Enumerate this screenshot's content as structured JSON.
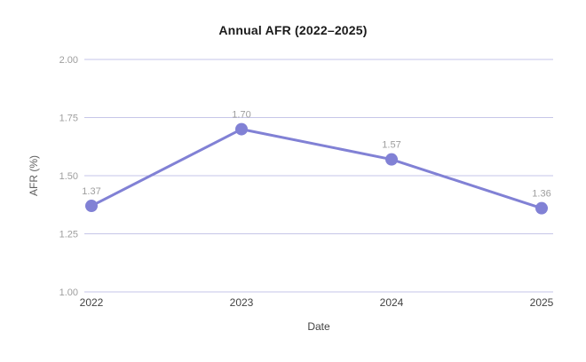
{
  "chart_data": {
    "type": "line",
    "title": "Annual AFR (2022–2025)",
    "xlabel": "Date",
    "ylabel": "AFR (%)",
    "x": [
      "2022",
      "2023",
      "2024",
      "2025"
    ],
    "series": [
      {
        "name": "AFR",
        "values": [
          1.37,
          1.7,
          1.57,
          1.36
        ]
      }
    ],
    "point_labels": [
      "1.37",
      "1.70",
      "1.57",
      "1.36"
    ],
    "ylim": [
      1.0,
      2.0
    ],
    "yticks": [
      1.0,
      1.25,
      1.5,
      1.75,
      2.0
    ],
    "ytick_labels": [
      "1.00",
      "1.25",
      "1.50",
      "1.75",
      "2.00"
    ],
    "grid": true,
    "legend": false,
    "colors": {
      "line": "#8181d5",
      "point": "#8181d5",
      "gridline": "#c6c6e8",
      "tick_label": "#9e9e9e",
      "data_label": "#9e9e9e",
      "x_label": "#424242",
      "axis_title_y": "#5f5f5f",
      "axis_title_x": "#424242",
      "title": "#1a1a1a",
      "background": "#ffffff"
    }
  }
}
